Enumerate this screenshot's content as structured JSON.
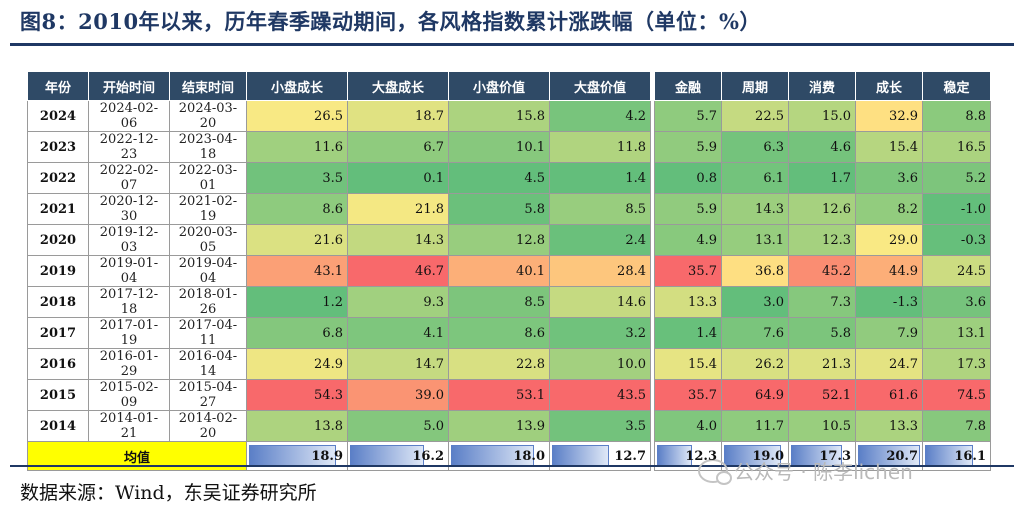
{
  "title": "图8：2010年以来，历年春季躁动期间，各风格指数累计涨跌幅（单位：%）",
  "source": "数据来源：Wind，东吴证券研究所",
  "watermark": "公众号 · 陈李lichen",
  "table": {
    "headers": [
      "年份",
      "开始时间",
      "结束时间",
      "小盘成长",
      "大盘成长",
      "小盘价值",
      "大盘价值",
      "金融",
      "周期",
      "消费",
      "成长",
      "稳定"
    ],
    "rows": [
      {
        "year": "2024",
        "start": "2024-02-06",
        "end": "2024-03-20",
        "values": [
          "26.5",
          "18.7",
          "15.8",
          "4.2",
          "5.7",
          "22.5",
          "15.0",
          "32.9",
          "8.8"
        ]
      },
      {
        "year": "2023",
        "start": "2022-12-23",
        "end": "2023-04-18",
        "values": [
          "11.6",
          "6.7",
          "10.1",
          "11.8",
          "5.9",
          "6.3",
          "4.6",
          "15.4",
          "16.5"
        ]
      },
      {
        "year": "2022",
        "start": "2022-02-07",
        "end": "2022-03-01",
        "values": [
          "3.5",
          "0.1",
          "4.5",
          "1.4",
          "0.8",
          "6.1",
          "1.7",
          "3.6",
          "5.2"
        ]
      },
      {
        "year": "2021",
        "start": "2020-12-30",
        "end": "2021-02-19",
        "values": [
          "8.6",
          "21.8",
          "5.8",
          "8.5",
          "5.9",
          "14.3",
          "12.6",
          "8.2",
          "-1.0"
        ]
      },
      {
        "year": "2020",
        "start": "2019-12-03",
        "end": "2020-03-05",
        "values": [
          "21.6",
          "14.3",
          "12.8",
          "2.4",
          "4.9",
          "13.1",
          "12.3",
          "29.0",
          "-0.3"
        ]
      },
      {
        "year": "2019",
        "start": "2019-01-04",
        "end": "2019-04-04",
        "values": [
          "43.1",
          "46.7",
          "40.1",
          "28.4",
          "35.7",
          "36.8",
          "45.2",
          "44.9",
          "24.5"
        ]
      },
      {
        "year": "2018",
        "start": "2017-12-18",
        "end": "2018-01-26",
        "values": [
          "1.2",
          "9.3",
          "8.5",
          "14.6",
          "13.3",
          "3.0",
          "7.3",
          "-1.3",
          "3.6"
        ]
      },
      {
        "year": "2017",
        "start": "2017-01-19",
        "end": "2017-04-11",
        "values": [
          "6.8",
          "4.1",
          "8.6",
          "3.2",
          "1.4",
          "7.6",
          "5.8",
          "7.9",
          "13.1"
        ]
      },
      {
        "year": "2016",
        "start": "2016-01-29",
        "end": "2016-04-14",
        "values": [
          "24.9",
          "14.7",
          "22.8",
          "10.0",
          "15.4",
          "26.2",
          "21.3",
          "24.7",
          "17.3"
        ]
      },
      {
        "year": "2015",
        "start": "2015-02-09",
        "end": "2015-04-27",
        "values": [
          "54.3",
          "39.0",
          "53.1",
          "43.5",
          "35.7",
          "64.9",
          "52.1",
          "61.6",
          "74.5"
        ]
      },
      {
        "year": "2014",
        "start": "2014-01-21",
        "end": "2014-02-20",
        "values": [
          "13.8",
          "5.0",
          "13.9",
          "3.5",
          "4.0",
          "11.7",
          "10.5",
          "13.3",
          "7.8"
        ]
      }
    ],
    "average_label": "均值",
    "averages": [
      "18.9",
      "16.2",
      "18.0",
      "12.7",
      "12.3",
      "19.0",
      "17.3",
      "20.7",
      "16.1"
    ]
  },
  "colors": {
    "header_bg": "#2f4a66",
    "average_label_bg": "#ffff00",
    "scale_low": "#63be7b",
    "scale_mid": "#ffeb84",
    "scale_high": "#f8696b",
    "bar": "#5b7fc7"
  }
}
